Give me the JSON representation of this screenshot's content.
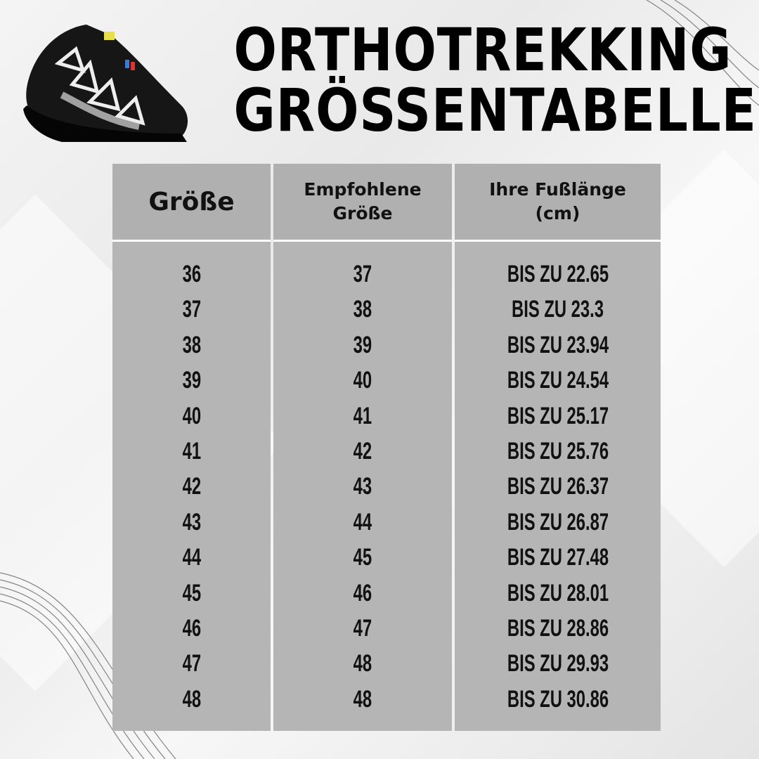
{
  "title": {
    "line1": "ORTHOTREKKING",
    "line2": "GRÖSSENTABELLE"
  },
  "table": {
    "headers": [
      {
        "line1": "Größe",
        "line2": ""
      },
      {
        "line1": "Empfohlene",
        "line2": "Größe"
      },
      {
        "line1": "Ihre Fußlänge",
        "line2": "(cm)"
      }
    ],
    "rows": [
      [
        "36",
        "37",
        "BIS ZU 22.65"
      ],
      [
        "37",
        "38",
        "BIS ZU 23.3"
      ],
      [
        "38",
        "39",
        "BIS ZU 23.94"
      ],
      [
        "39",
        "40",
        "BIS ZU 24.54"
      ],
      [
        "40",
        "41",
        "BIS ZU 25.17"
      ],
      [
        "41",
        "42",
        "BIS ZU 25.76"
      ],
      [
        "42",
        "43",
        "BIS ZU 26.37"
      ],
      [
        "43",
        "44",
        "BIS ZU 26.87"
      ],
      [
        "44",
        "45",
        "BIS ZU 27.48"
      ],
      [
        "45",
        "46",
        "BIS ZU 28.01"
      ],
      [
        "46",
        "47",
        "BIS ZU 28.86"
      ],
      [
        "47",
        "48",
        "BIS ZU 29.93"
      ],
      [
        "48",
        "48",
        "BIS ZU 30.86"
      ]
    ]
  },
  "colors": {
    "cell_bg": "#b5b5b5",
    "text": "#111111",
    "background": "#efefef"
  }
}
